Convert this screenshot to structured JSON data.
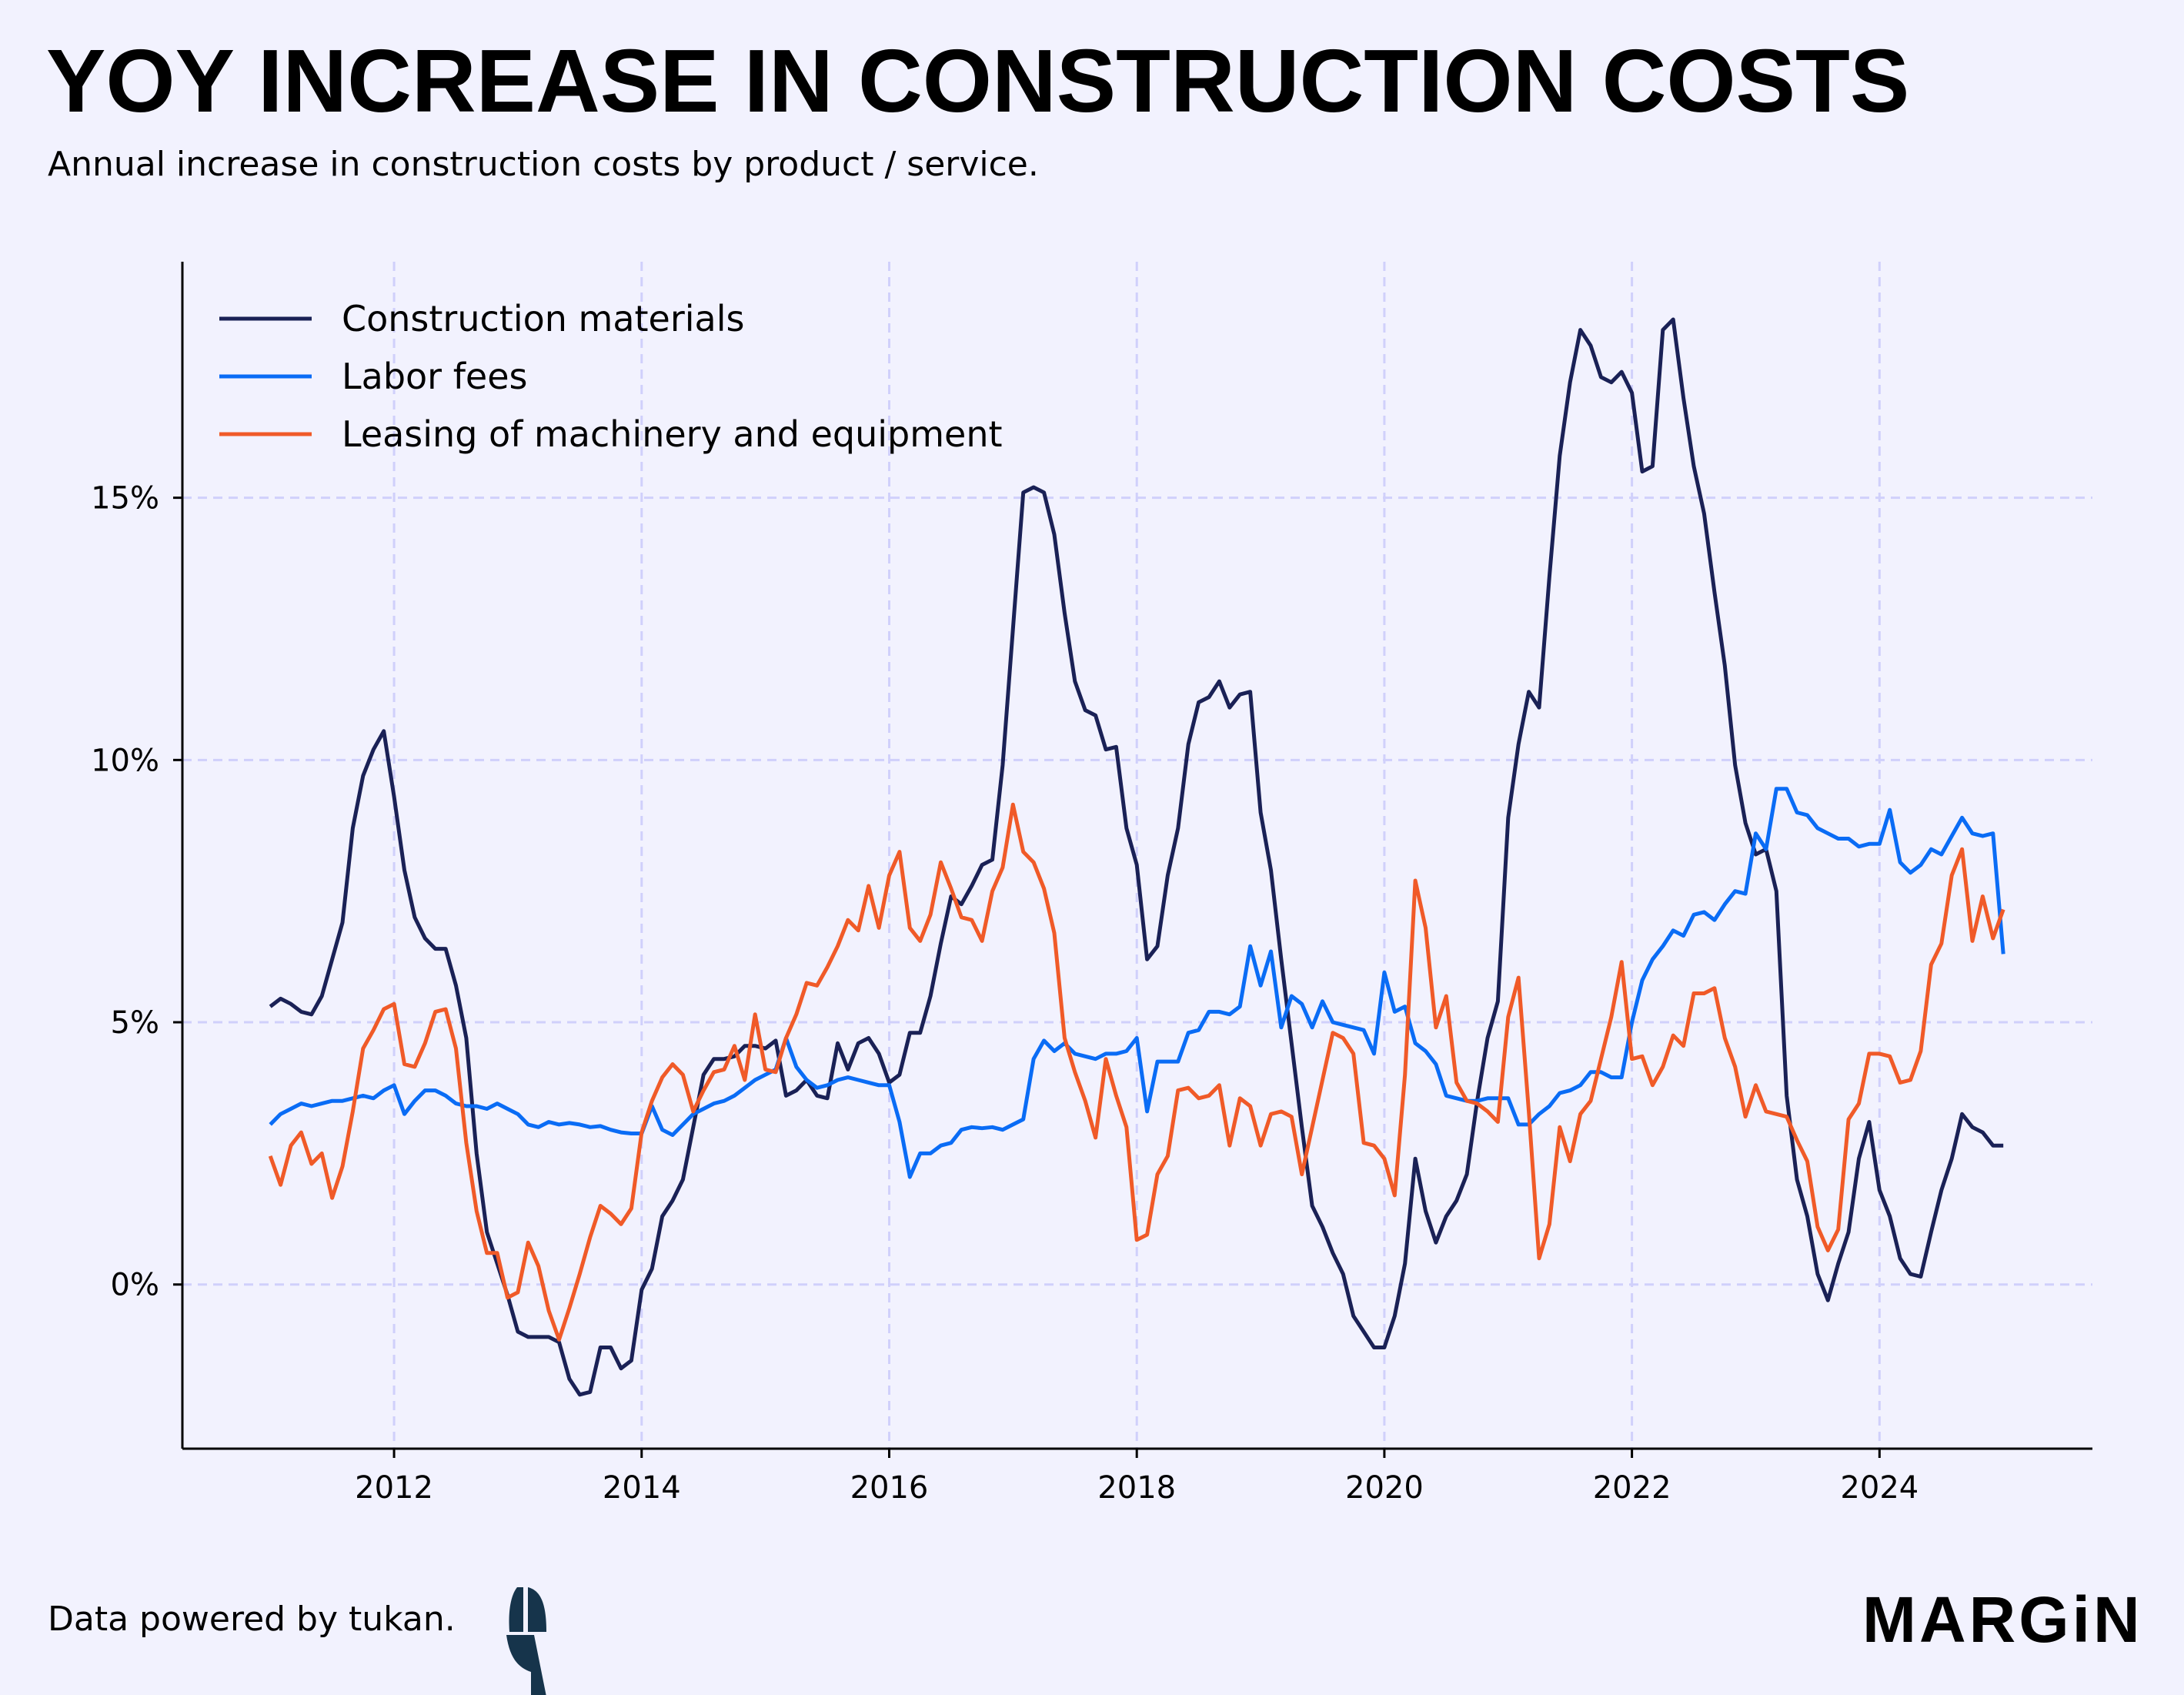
{
  "header": {
    "title": "YOY INCREASE IN CONSTRUCTION COSTS",
    "subtitle": "Annual increase in construction costs by product / service."
  },
  "footer": {
    "credit": "Data powered by tukan.",
    "brand": "MARGiN"
  },
  "chart_data": {
    "type": "line",
    "title": "YOY INCREASE IN CONSTRUCTION COSTS",
    "xlabel": "",
    "ylabel": "",
    "x_start": 2011.0,
    "x_step_years": 0.0833333,
    "xlim": [
      2010.29,
      2025.72
    ],
    "ylim": [
      -3.13,
      19.5
    ],
    "x_ticks": [
      2012,
      2014,
      2016,
      2018,
      2020,
      2022,
      2024
    ],
    "x_tick_labels": [
      "2012",
      "2014",
      "2016",
      "2018",
      "2020",
      "2022",
      "2024"
    ],
    "y_ticks": [
      0,
      5,
      10,
      15
    ],
    "y_tick_labels": [
      "0%",
      "5%",
      "10%",
      "15%"
    ],
    "grid": true,
    "legend_position": "top-left",
    "series": [
      {
        "name": "Construction materials",
        "color": "#1a2156",
        "values": [
          5.3,
          5.45,
          5.35,
          5.2,
          5.15,
          5.5,
          6.2,
          6.9,
          8.7,
          9.7,
          10.2,
          10.55,
          9.3,
          7.9,
          7.0,
          6.6,
          6.4,
          6.4,
          5.7,
          4.7,
          2.5,
          1.0,
          0.4,
          -0.2,
          -0.9,
          -1.0,
          -1.0,
          -1.0,
          -1.1,
          -1.8,
          -2.1,
          -2.05,
          -1.2,
          -1.2,
          -1.6,
          -1.45,
          -0.1,
          0.3,
          1.3,
          1.6,
          2.0,
          3.0,
          4.0,
          4.3,
          4.3,
          4.35,
          4.55,
          4.55,
          4.5,
          4.65,
          3.6,
          3.7,
          3.9,
          3.6,
          3.55,
          4.6,
          4.1,
          4.6,
          4.7,
          4.4,
          3.85,
          4.0,
          4.8,
          4.8,
          5.5,
          6.5,
          7.4,
          7.25,
          7.6,
          8.0,
          8.1,
          9.9,
          12.5,
          15.1,
          15.2,
          15.1,
          14.3,
          12.8,
          11.5,
          10.95,
          10.85,
          10.2,
          10.25,
          8.7,
          8.0,
          6.2,
          6.45,
          7.8,
          8.7,
          10.3,
          11.1,
          11.2,
          11.5,
          11.0,
          11.25,
          11.3,
          9.0,
          7.9,
          6.2,
          4.6,
          3.0,
          1.5,
          1.1,
          0.6,
          0.2,
          -0.6,
          -0.9,
          -1.2,
          -1.2,
          -0.6,
          0.4,
          2.4,
          1.4,
          0.8,
          1.3,
          1.6,
          2.1,
          3.5,
          4.7,
          5.4,
          8.9,
          10.3,
          11.3,
          11.0,
          13.5,
          15.8,
          17.2,
          18.2,
          17.9,
          17.3,
          17.2,
          17.4,
          17.0,
          15.5,
          15.6,
          18.2,
          18.4,
          16.9,
          15.6,
          14.7,
          13.2,
          11.8,
          9.9,
          8.8,
          8.2,
          8.3,
          7.5,
          3.6,
          2.0,
          1.3,
          0.2,
          -0.3,
          0.4,
          1.0,
          2.4,
          3.1,
          1.8,
          1.3,
          0.5,
          0.2,
          0.15,
          1.0,
          1.8,
          2.4,
          3.25,
          3.0,
          2.9,
          2.65,
          2.65
        ]
      },
      {
        "name": "Labor fees",
        "color": "#0a6cf5",
        "values": [
          3.05,
          3.25,
          3.35,
          3.45,
          3.4,
          3.45,
          3.5,
          3.5,
          3.55,
          3.6,
          3.55,
          3.7,
          3.8,
          3.25,
          3.5,
          3.7,
          3.7,
          3.6,
          3.45,
          3.4,
          3.4,
          3.35,
          3.45,
          3.35,
          3.25,
          3.05,
          3.0,
          3.1,
          3.05,
          3.08,
          3.05,
          3.0,
          3.02,
          2.95,
          2.9,
          2.88,
          2.88,
          3.4,
          2.95,
          2.85,
          3.05,
          3.25,
          3.35,
          3.45,
          3.5,
          3.6,
          3.75,
          3.9,
          4.0,
          4.1,
          4.7,
          4.15,
          3.9,
          3.75,
          3.8,
          3.9,
          3.95,
          3.9,
          3.85,
          3.8,
          3.8,
          3.1,
          2.05,
          2.5,
          2.5,
          2.65,
          2.7,
          2.95,
          3.0,
          2.98,
          3.0,
          2.95,
          3.05,
          3.15,
          4.3,
          4.65,
          4.45,
          4.6,
          4.4,
          4.35,
          4.3,
          4.4,
          4.4,
          4.45,
          4.7,
          3.3,
          4.25,
          4.25,
          4.25,
          4.8,
          4.85,
          5.2,
          5.2,
          5.15,
          5.3,
          6.45,
          5.7,
          6.35,
          4.9,
          5.5,
          5.35,
          4.9,
          5.4,
          5.0,
          4.95,
          4.9,
          4.85,
          4.4,
          5.95,
          5.2,
          5.3,
          4.6,
          4.45,
          4.2,
          3.6,
          3.55,
          3.5,
          3.5,
          3.55,
          3.55,
          3.55,
          3.05,
          3.05,
          3.25,
          3.4,
          3.65,
          3.7,
          3.8,
          4.05,
          4.05,
          3.95,
          3.95,
          5.0,
          5.8,
          6.2,
          6.45,
          6.75,
          6.65,
          7.05,
          7.1,
          6.95,
          7.25,
          7.5,
          7.45,
          8.6,
          8.3,
          9.45,
          9.45,
          9.0,
          8.95,
          8.7,
          8.6,
          8.5,
          8.5,
          8.35,
          8.4,
          8.4,
          9.05,
          8.05,
          7.85,
          8.0,
          8.3,
          8.2,
          8.55,
          8.9,
          8.6,
          8.55,
          8.6,
          6.3
        ]
      },
      {
        "name": "Leasing of machinery and equipment",
        "color": "#f05a28",
        "values": [
          2.45,
          1.9,
          2.65,
          2.9,
          2.3,
          2.5,
          1.65,
          2.25,
          3.3,
          4.5,
          4.85,
          5.25,
          5.35,
          4.2,
          4.15,
          4.6,
          5.2,
          5.25,
          4.5,
          2.7,
          1.4,
          0.6,
          0.6,
          -0.25,
          -0.15,
          0.8,
          0.35,
          -0.5,
          -1.05,
          -0.45,
          0.2,
          0.9,
          1.5,
          1.35,
          1.15,
          1.45,
          2.9,
          3.5,
          3.95,
          4.2,
          4.0,
          3.3,
          3.7,
          4.05,
          4.1,
          4.55,
          3.9,
          5.15,
          4.1,
          4.05,
          4.7,
          5.15,
          5.75,
          5.7,
          6.05,
          6.45,
          6.95,
          6.75,
          7.6,
          6.8,
          7.8,
          8.25,
          6.8,
          6.55,
          7.05,
          8.05,
          7.55,
          7.0,
          6.95,
          6.55,
          7.5,
          7.95,
          9.15,
          8.25,
          8.05,
          7.55,
          6.7,
          4.7,
          4.05,
          3.5,
          2.8,
          4.3,
          3.6,
          3.0,
          0.85,
          0.95,
          2.1,
          2.45,
          3.7,
          3.75,
          3.55,
          3.6,
          3.8,
          2.65,
          3.55,
          3.4,
          2.65,
          3.25,
          3.3,
          3.2,
          2.1,
          3.0,
          3.9,
          4.8,
          4.7,
          4.4,
          2.7,
          2.65,
          2.4,
          1.7,
          4.0,
          7.7,
          6.8,
          4.9,
          5.5,
          3.85,
          3.5,
          3.45,
          3.3,
          3.1,
          5.1,
          5.85,
          3.3,
          0.5,
          1.15,
          3.0,
          2.35,
          3.25,
          3.5,
          4.3,
          5.1,
          6.15,
          4.3,
          4.35,
          3.8,
          4.15,
          4.75,
          4.55,
          5.55,
          5.55,
          5.65,
          4.7,
          4.15,
          3.2,
          3.8,
          3.3,
          3.25,
          3.2,
          2.75,
          2.35,
          1.1,
          0.65,
          1.05,
          3.15,
          3.45,
          4.4,
          4.4,
          4.35,
          3.85,
          3.9,
          4.45,
          6.1,
          6.5,
          7.8,
          8.3,
          6.55,
          7.4,
          6.6,
          7.15
        ]
      }
    ]
  }
}
